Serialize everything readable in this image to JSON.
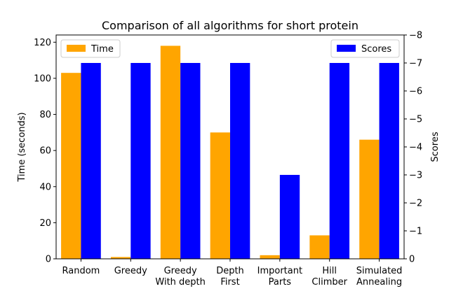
{
  "chart_data": {
    "type": "bar",
    "title": "Comparison of all algorithms for short protein",
    "categories": [
      [
        "Random"
      ],
      [
        "Greedy"
      ],
      [
        "Greedy",
        "With depth"
      ],
      [
        "Depth",
        "First"
      ],
      [
        "Important",
        "Parts"
      ],
      [
        "Hill",
        "Climber"
      ],
      [
        "Simulated",
        "Annealing"
      ]
    ],
    "series": [
      {
        "name": "Time",
        "axis": "left",
        "color": "#ffa500",
        "values": [
          103,
          1,
          118,
          70,
          2,
          13,
          66
        ]
      },
      {
        "name": "Scores",
        "axis": "right",
        "color": "#0000ff",
        "values": [
          -7,
          -7,
          -7,
          -7,
          -3,
          -7,
          -7
        ]
      }
    ],
    "left_axis": {
      "label": "Time (seconds)",
      "ylim": [
        0,
        124
      ],
      "ticks": [
        0,
        20,
        40,
        60,
        80,
        100,
        120
      ]
    },
    "right_axis": {
      "label": "Scores",
      "ylim": [
        0,
        -8
      ],
      "ticks": [
        0,
        -1,
        -2,
        -3,
        -4,
        -5,
        -6,
        -7,
        -8
      ]
    },
    "legends": [
      {
        "series": "Time",
        "placement": "top-left"
      },
      {
        "series": "Scores",
        "placement": "top-right"
      }
    ],
    "grid": false
  }
}
